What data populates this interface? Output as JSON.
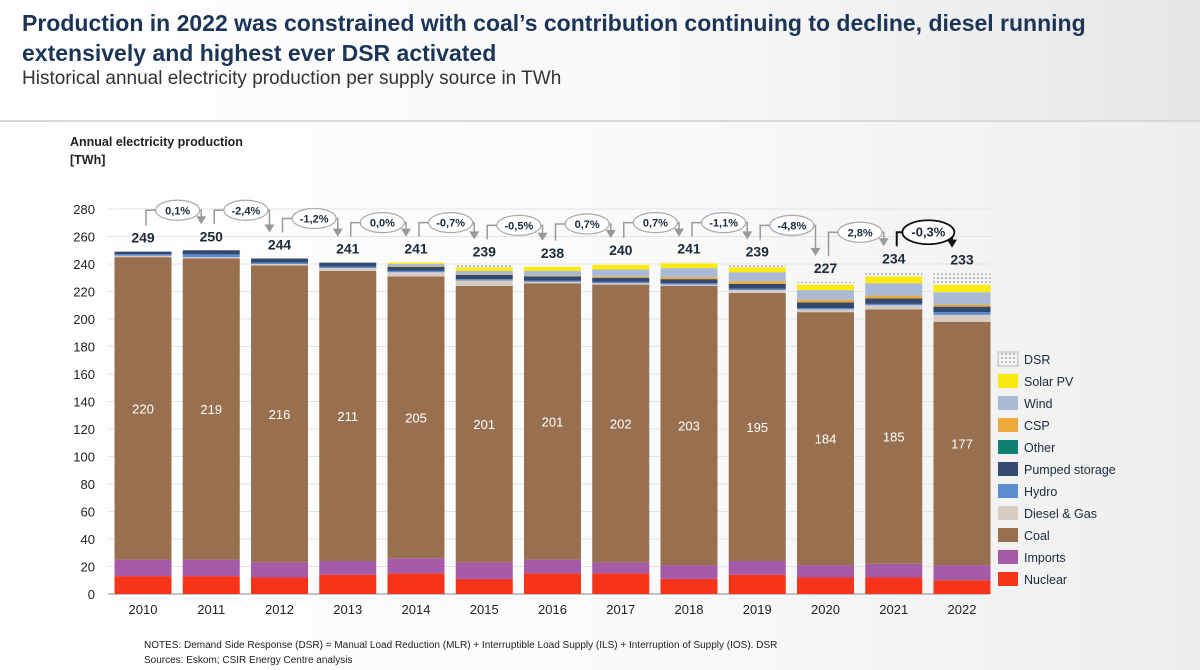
{
  "header": {
    "title": "Production in 2022 was constrained with coal’s contribution continuing to decline,  diesel running extensively and highest ever DSR activated",
    "subtitle": "Historical annual electricity production per supply source in TWh"
  },
  "chart_data": {
    "type": "bar",
    "stacked": true,
    "ylabel": "Annual electricity  production\n[TWh]",
    "ylabel_line1": "Annual electricity  production",
    "ylabel_line2": "[TWh]",
    "ylim": [
      0,
      280
    ],
    "yticks": [
      0,
      20,
      40,
      60,
      80,
      100,
      120,
      140,
      160,
      180,
      200,
      220,
      240,
      260,
      280
    ],
    "grid": true,
    "legend": "right",
    "categories": [
      "2010",
      "2011",
      "2012",
      "2013",
      "2014",
      "2015",
      "2016",
      "2017",
      "2018",
      "2019",
      "2020",
      "2021",
      "2022"
    ],
    "totals": [
      249,
      250,
      244,
      241,
      241,
      239,
      238,
      240,
      241,
      239,
      227,
      234,
      233
    ],
    "changes": [
      "0,1%",
      "-2,4%",
      "-1,2%",
      "0,0%",
      "-0,7%",
      "-0,5%",
      "0,7%",
      "0,7%",
      "-1,1%",
      "-4,8%",
      "2,8%",
      "-0,3%"
    ],
    "series": [
      {
        "name": "Nuclear",
        "color": "#f5341a",
        "values": [
          13,
          13,
          12,
          14,
          15,
          11,
          15,
          15,
          11,
          14,
          12,
          12,
          10
        ]
      },
      {
        "name": "Imports",
        "color": "#a55aa8",
        "values": [
          12,
          12,
          11,
          10,
          11,
          12,
          10,
          8,
          10,
          10,
          9,
          10,
          11
        ]
      },
      {
        "name": "Coal",
        "color": "#98704f",
        "values": [
          220,
          219,
          216,
          211,
          205,
          201,
          201,
          202,
          203,
          195,
          184,
          185,
          177
        ],
        "labeled": true
      },
      {
        "name": "Diesel & Gas",
        "color": "#d8cdc5",
        "values": [
          1,
          1,
          1,
          2,
          3,
          4,
          1,
          1,
          1,
          2,
          2,
          3,
          5
        ]
      },
      {
        "name": "Hydro",
        "color": "#5b8bd0",
        "values": [
          1,
          2,
          1,
          1,
          1,
          1,
          1,
          1,
          1,
          1,
          1,
          1,
          2
        ]
      },
      {
        "name": "Pumped storage",
        "color": "#33496f",
        "values": [
          2,
          3,
          3,
          3,
          3,
          3,
          3,
          3,
          3,
          3.5,
          4,
          4,
          4
        ]
      },
      {
        "name": "Other",
        "color": "#0f7f72",
        "values": [
          0,
          0,
          0,
          0,
          0,
          0,
          0,
          0,
          0,
          0,
          0,
          0,
          0
        ]
      },
      {
        "name": "CSP",
        "color": "#eaab3c",
        "values": [
          0,
          0,
          0,
          0,
          0.5,
          0.5,
          0.5,
          1,
          1.5,
          2,
          2,
          2,
          1.5
        ]
      },
      {
        "name": "Wind",
        "color": "#a9b9d6",
        "values": [
          0,
          0,
          0,
          0,
          1.5,
          2.5,
          3.5,
          5,
          6.5,
          6.5,
          7,
          9,
          9
        ]
      },
      {
        "name": "Solar PV",
        "color": "#fbe912",
        "values": [
          0,
          0,
          0,
          0,
          1,
          2.5,
          3,
          3.5,
          3.5,
          3.5,
          4,
          5,
          5.5
        ]
      },
      {
        "name": "DSR",
        "color": "dotted",
        "values": [
          0,
          0,
          0,
          0,
          0,
          1.5,
          0,
          0.5,
          0.5,
          1.5,
          2,
          3,
          8
        ]
      }
    ]
  },
  "notes": {
    "line1": "NOTES: Demand Side Response (DSR) = Manual Load Reduction (MLR) + Interruptible Load Supply (ILS) + Interruption of Supply (IOS). DSR",
    "line2": "Sources: Eskom; CSIR Energy Centre analysis"
  }
}
